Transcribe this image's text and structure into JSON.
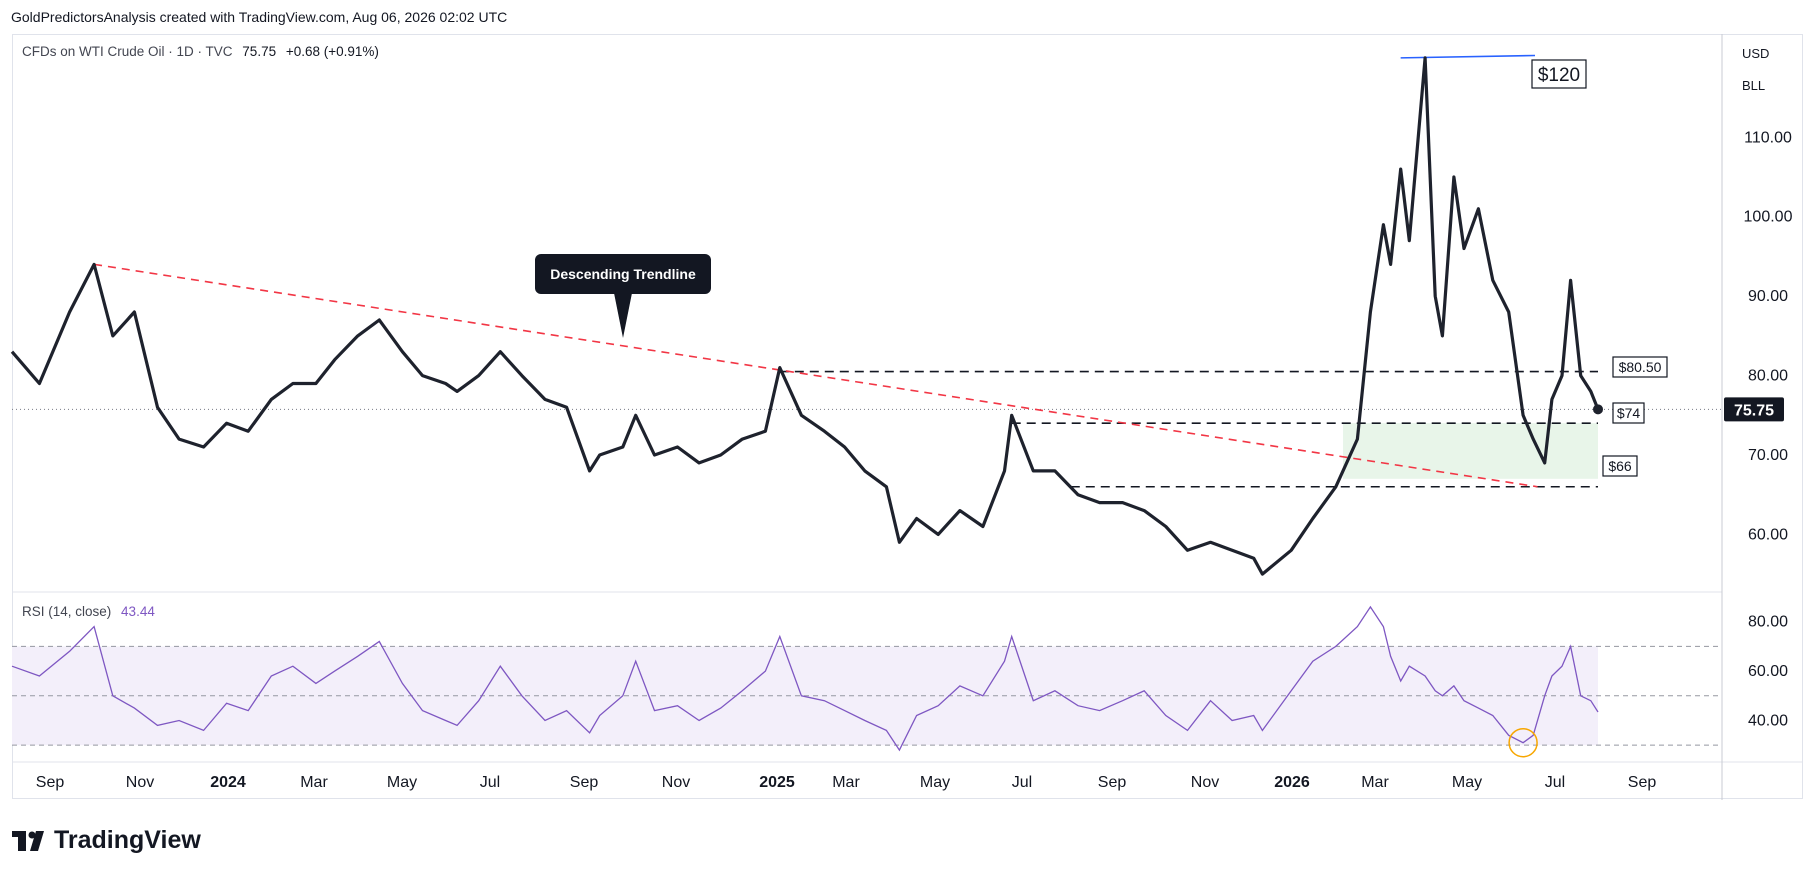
{
  "header": {
    "attribution": "GoldPredictorsAnalysis created with TradingView.com, Aug 06, 2026 02:02 UTC"
  },
  "legend": {
    "symbol": "CFDs on WTI Crude Oil · 1D · TVC",
    "last": "75.75",
    "change": "+0.68 (+0.91%)"
  },
  "rsi_legend": {
    "name": "RSI (14, close)",
    "value": "43.44"
  },
  "units": {
    "currency": "USD",
    "volume": "BLL"
  },
  "annotation": {
    "callout": "Descending Trendline"
  },
  "brand": {
    "name": "TradingView"
  },
  "colors": {
    "price_line": "#1e222d",
    "trendline": "#f23645",
    "resistance_line": "#2962ff",
    "support_zone": "#e8f5e9",
    "rsi_line": "#7e57c2",
    "rsi_band": "#f3effa",
    "rsi_highlight": "#f7a600"
  },
  "chart_data": [
    {
      "type": "line",
      "title": "",
      "series": [
        {
          "name": "",
          "x": [
            "2023-08-01",
            "2023-08-20",
            "2023-09-10",
            "2023-09-27",
            "2023-10-10",
            "2023-10-25",
            "2023-11-10",
            "2023-11-25",
            "2023-12-12",
            "2023-12-28",
            "2024-01-12",
            "2024-01-28",
            "2024-02-12",
            "2024-02-28",
            "2024-03-12",
            "2024-03-28",
            "2024-04-12",
            "2024-04-28",
            "2024-05-12",
            "2024-05-28",
            "2024-06-05",
            "2024-06-20",
            "2024-07-05",
            "2024-07-20",
            "2024-08-05",
            "2024-08-20",
            "2024-09-05",
            "2024-09-12",
            "2024-09-28",
            "2024-10-07",
            "2024-10-20",
            "2024-11-05",
            "2024-11-20",
            "2024-12-05",
            "2024-12-20",
            "2025-01-05",
            "2025-01-15",
            "2025-01-30",
            "2025-02-15",
            "2025-03-01",
            "2025-03-15",
            "2025-03-30",
            "2025-04-08",
            "2025-04-20",
            "2025-05-05",
            "2025-05-20",
            "2025-06-05",
            "2025-06-20",
            "2025-06-25",
            "2025-07-10",
            "2025-07-25",
            "2025-08-10",
            "2025-08-25",
            "2025-09-10",
            "2025-09-25",
            "2025-10-10",
            "2025-10-25",
            "2025-11-10",
            "2025-11-25",
            "2025-12-10",
            "2025-12-16",
            "2026-01-05",
            "2026-01-20",
            "2026-02-05",
            "2026-02-20",
            "2026-03-01",
            "2026-03-10",
            "2026-03-15",
            "2026-03-22",
            "2026-03-28",
            "2026-04-08",
            "2026-04-15",
            "2026-04-20",
            "2026-04-28",
            "2026-05-05",
            "2026-05-15",
            "2026-05-25",
            "2026-06-05",
            "2026-06-15",
            "2026-06-22",
            "2026-06-30",
            "2026-07-05",
            "2026-07-12",
            "2026-07-18",
            "2026-07-25",
            "2026-08-01",
            "2026-08-06"
          ],
          "values": [
            83,
            79,
            88,
            94,
            85,
            88,
            76,
            72,
            71,
            74,
            73,
            77,
            79,
            79,
            82,
            85,
            87,
            83,
            80,
            79,
            78,
            80,
            83,
            80,
            77,
            76,
            68,
            70,
            71,
            75,
            70,
            71,
            69,
            70,
            72,
            73,
            81,
            75,
            73,
            71,
            68,
            66,
            59,
            62,
            60,
            63,
            61,
            68,
            75,
            68,
            68,
            65,
            64,
            64,
            63,
            61,
            58,
            59,
            58,
            57,
            55,
            58,
            62,
            66,
            72,
            88,
            99,
            94,
            106,
            97,
            120,
            90,
            85,
            105,
            96,
            101,
            92,
            88,
            75,
            72,
            69,
            77,
            80,
            92,
            80,
            78,
            75.75
          ]
        }
      ],
      "annotations": [
        {
          "label": "$120",
          "value": 120
        },
        {
          "label": "$80.50",
          "value": 80.5
        },
        {
          "label": "$74",
          "value": 74
        },
        {
          "label": "$66",
          "value": 66
        },
        {
          "label": "75.75",
          "value": 75.75
        }
      ],
      "trendline": {
        "start": [
          "2023-09-27",
          94
        ],
        "end": [
          "2026-06-25",
          66
        ]
      },
      "support_zone": {
        "from": 67,
        "to": 74,
        "start": "2026-02-10",
        "end": "2026-08-06"
      },
      "yticks": [
        "60.00",
        "70.00",
        "80.00",
        "90.00",
        "100.00",
        "110.00"
      ],
      "ylim": [
        53,
        122
      ],
      "x_ticks": [
        "Sep",
        "Nov",
        "2024",
        "Mar",
        "May",
        "Jul",
        "Sep",
        "Nov",
        "2025",
        "Mar",
        "May",
        "Jul",
        "Sep",
        "Nov",
        "2026",
        "Mar",
        "May",
        "Jul",
        "Sep"
      ],
      "grid": false
    },
    {
      "type": "line",
      "title": "",
      "series": [
        {
          "name": "",
          "x": [
            "2023-08-01",
            "2023-08-20",
            "2023-09-10",
            "2023-09-27",
            "2023-10-10",
            "2023-10-25",
            "2023-11-10",
            "2023-11-25",
            "2023-12-12",
            "2023-12-28",
            "2024-01-12",
            "2024-01-28",
            "2024-02-12",
            "2024-02-28",
            "2024-03-12",
            "2024-03-28",
            "2024-04-12",
            "2024-04-28",
            "2024-05-12",
            "2024-05-28",
            "2024-06-05",
            "2024-06-20",
            "2024-07-05",
            "2024-07-20",
            "2024-08-05",
            "2024-08-20",
            "2024-09-05",
            "2024-09-12",
            "2024-09-28",
            "2024-10-07",
            "2024-10-20",
            "2024-11-05",
            "2024-11-20",
            "2024-12-05",
            "2024-12-20",
            "2025-01-05",
            "2025-01-15",
            "2025-01-30",
            "2025-02-15",
            "2025-03-01",
            "2025-03-15",
            "2025-03-30",
            "2025-04-08",
            "2025-04-20",
            "2025-05-05",
            "2025-05-20",
            "2025-06-05",
            "2025-06-20",
            "2025-06-25",
            "2025-07-10",
            "2025-07-25",
            "2025-08-10",
            "2025-08-25",
            "2025-09-10",
            "2025-09-25",
            "2025-10-10",
            "2025-10-25",
            "2025-11-10",
            "2025-11-25",
            "2025-12-10",
            "2025-12-16",
            "2026-01-05",
            "2026-01-20",
            "2026-02-05",
            "2026-02-20",
            "2026-03-01",
            "2026-03-10",
            "2026-03-15",
            "2026-03-22",
            "2026-03-28",
            "2026-04-08",
            "2026-04-15",
            "2026-04-20",
            "2026-04-28",
            "2026-05-05",
            "2026-05-15",
            "2026-05-25",
            "2026-06-05",
            "2026-06-15",
            "2026-06-22",
            "2026-06-30",
            "2026-07-05",
            "2026-07-12",
            "2026-07-18",
            "2026-07-25",
            "2026-08-01",
            "2026-08-06"
          ],
          "values": [
            62,
            58,
            68,
            78,
            50,
            45,
            38,
            40,
            36,
            47,
            44,
            58,
            62,
            55,
            60,
            66,
            72,
            55,
            44,
            40,
            38,
            48,
            62,
            50,
            40,
            44,
            35,
            42,
            50,
            64,
            44,
            46,
            40,
            45,
            52,
            60,
            74,
            50,
            48,
            44,
            40,
            36,
            28,
            42,
            46,
            54,
            50,
            64,
            74,
            48,
            52,
            46,
            44,
            48,
            52,
            42,
            36,
            48,
            40,
            42,
            36,
            52,
            64,
            70,
            78,
            86,
            78,
            66,
            56,
            62,
            58,
            52,
            50,
            54,
            48,
            45,
            42,
            34,
            31,
            34,
            50,
            58,
            62,
            70,
            50,
            48,
            43.44
          ]
        }
      ],
      "yticks": [
        "40.00",
        "60.00",
        "80.00"
      ],
      "ylim": [
        24,
        90
      ],
      "bands": [
        30,
        50,
        70
      ]
    }
  ]
}
